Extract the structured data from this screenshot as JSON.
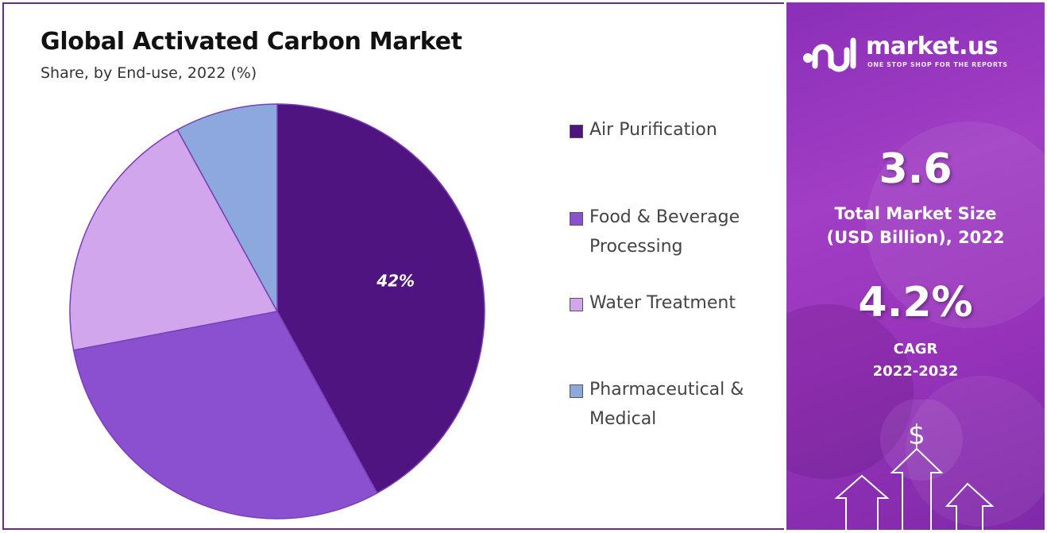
{
  "title": "Global Activated Carbon Market",
  "subtitle": "Share, by End-use, 2022 (%)",
  "chart_data": {
    "type": "pie",
    "title": "Global Activated Carbon Market",
    "subtitle": "Share, by End-use, 2022 (%)",
    "categories": [
      "Air Purification",
      "Food & Beverage Processing",
      "Water Treatment",
      "Pharmaceutical & Medical"
    ],
    "values": [
      42,
      30,
      20,
      8
    ],
    "data_labels": [
      "42%",
      "",
      "",
      ""
    ],
    "colors": [
      "#4f1480",
      "#8a50cf",
      "#d2a6ec",
      "#8ca8dc"
    ],
    "legend_position": "right"
  },
  "legend": {
    "items": [
      {
        "label": "Air Purification",
        "color": "#4f1480"
      },
      {
        "label": "Food & Beverage Processing",
        "color": "#8a50cf"
      },
      {
        "label": "Water Treatment",
        "color": "#d2a6ec"
      },
      {
        "label": "Pharmaceutical & Medical",
        "color": "#8ca8dc"
      }
    ]
  },
  "sidebar": {
    "brand": "market.us",
    "tagline": "ONE STOP SHOP FOR THE REPORTS",
    "market_size_value": "3.6",
    "market_size_label_line1": "Total Market Size",
    "market_size_label_line2": "(USD Billion), 2022",
    "cagr_value": "4.2%",
    "cagr_label_line1": "CAGR",
    "cagr_label_line2": "2022-2032",
    "dollar_symbol": "$",
    "background_color": "#9a34bd"
  }
}
